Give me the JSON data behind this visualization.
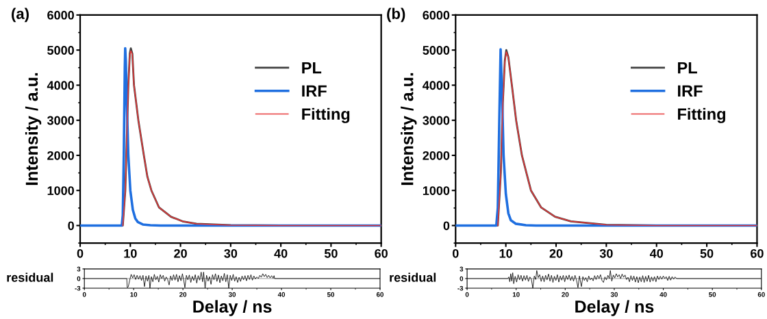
{
  "chart_data": [
    {
      "type": "line",
      "annotations": [
        "(a)"
      ],
      "ylabel": "Intensity / a.u.",
      "xlim": [
        0,
        60
      ],
      "ylim": [
        -500,
        6000
      ],
      "xticks": [
        0,
        10,
        20,
        30,
        40,
        50,
        60
      ],
      "yticks": [
        0,
        1000,
        2000,
        3000,
        4000,
        5000,
        6000
      ],
      "legend": "top right",
      "series": [
        {
          "name": "PL",
          "color": "#404040",
          "x": [
            0,
            8.5,
            9.0,
            9.3,
            9.6,
            9.9,
            10.1,
            10.4,
            10.73,
            11.6,
            12.7,
            13.4,
            14.2,
            15.7,
            18.1,
            20.4,
            23.2,
            30,
            40,
            60
          ],
          "values": [
            0,
            0,
            1000,
            2500,
            4000,
            4900,
            5050,
            4900,
            4000,
            3000,
            2000,
            1390,
            1000,
            520,
            250,
            120,
            50,
            10,
            0,
            0
          ]
        },
        {
          "name": "IRF",
          "color": "#1f6fe0",
          "x": [
            0,
            8.3,
            8.5,
            8.7,
            8.9,
            8.98,
            9.1,
            9.3,
            9.6,
            10.0,
            10.5,
            11.0,
            11.5,
            12.5,
            14,
            16,
            60
          ],
          "values": [
            0,
            0,
            300,
            2000,
            4500,
            5050,
            4700,
            3500,
            2000,
            1000,
            450,
            200,
            100,
            30,
            10,
            0,
            0
          ]
        },
        {
          "name": "Fitting",
          "color": "#e8393a",
          "x": [
            8.5,
            9.0,
            9.3,
            9.6,
            9.9,
            10.1,
            10.4,
            10.73,
            11.6,
            12.7,
            13.4,
            14.2,
            15.7,
            18.1,
            20.4,
            23.2,
            30,
            40,
            60
          ],
          "values": [
            0,
            1000,
            2500,
            4000,
            4850,
            4980,
            4880,
            4000,
            3000,
            2000,
            1390,
            1000,
            520,
            250,
            120,
            50,
            10,
            0,
            0
          ]
        }
      ]
    },
    {
      "type": "line",
      "ylabel": "residual",
      "xlabel": "Delay / ns",
      "xlim": [
        0,
        60
      ],
      "ylim": [
        -3,
        3
      ],
      "xticks": [
        0,
        10,
        20,
        30,
        40,
        50,
        60
      ],
      "yticks": [
        -3,
        0,
        3
      ],
      "ref_lines": [
        {
          "axis": "y",
          "value": 0,
          "color": "#b0b0b0"
        }
      ],
      "series": [
        {
          "color": "#000000",
          "x": [
            0,
            8.6,
            8.7,
            8.9,
            9.2,
            9.5,
            9.8,
            10.1,
            10.4,
            10.7,
            11.0,
            11.3,
            11.6,
            11.9,
            12.2,
            12.5,
            12.8,
            13.1,
            13.3,
            13.6,
            13.9,
            14.2,
            14.5,
            14.8,
            15.1,
            15.4,
            15.7,
            16.0,
            16.3,
            16.6,
            16.9,
            17.2,
            17.5,
            17.8,
            18.1,
            18.4,
            18.7,
            19.0,
            19.3,
            19.6,
            19.9,
            20.2,
            20.4,
            20.7,
            21.0,
            21.3,
            21.6,
            21.9,
            22.2,
            22.5,
            22.8,
            23.1,
            23.4,
            23.7,
            24.0,
            24.2,
            24.5,
            24.8,
            25.1,
            25.4,
            25.7,
            26.0,
            26.3,
            26.6,
            26.9,
            27.2,
            27.5,
            27.8,
            28.1,
            28.4,
            28.7,
            29.0,
            29.3,
            29.6,
            29.9,
            30.2,
            30.5,
            30.8,
            31.1,
            31.4,
            31.7,
            32.0,
            32.3,
            32.6,
            32.9,
            33.2,
            33.5,
            33.8,
            34.1,
            34.4,
            34.7,
            35.0,
            35.3,
            35.6,
            35.9,
            36.2,
            36.5,
            36.8,
            37.1,
            37.4,
            37.7,
            38.0,
            38.3,
            38.5,
            38.6,
            60
          ],
          "values": [
            0,
            0,
            -2.8,
            -2.6,
            -0.5,
            1.3,
            0.2,
            1.2,
            -0.3,
            1.0,
            -0.2,
            0.9,
            -0.6,
            1.0,
            -2.5,
            0.8,
            -0.8,
            1.0,
            -3.0,
            0.6,
            -1.0,
            1.3,
            -0.4,
            0.7,
            -1.1,
            1.2,
            0.0,
            1.0,
            -0.8,
            0.5,
            -0.3,
            -2.0,
            0.8,
            -0.6,
            1.2,
            -0.5,
            1.3,
            -1.0,
            0.9,
            -0.7,
            1.5,
            -0.9,
            -2.8,
            1.0,
            -0.4,
            1.1,
            -1.2,
            0.7,
            -0.6,
            1.2,
            -1.4,
            0.9,
            -0.5,
            2.0,
            -1.0,
            2.0,
            -3.0,
            1.0,
            -0.8,
            0.6,
            -1.8,
            1.2,
            -0.4,
            1.5,
            -0.9,
            1.1,
            -1.3,
            0.8,
            -0.7,
            1.6,
            -1.0,
            1.2,
            -3.0,
            1.0,
            -0.6,
            1.3,
            -0.8,
            0.6,
            -1.2,
            0.4,
            -0.9,
            0.8,
            -0.4,
            0.9,
            -0.7,
            1.0,
            -0.3,
            1.2,
            -0.5,
            0.8,
            -0.1,
            0.5,
            0.0,
            1.0,
            0.4,
            1.5,
            0.6,
            1.3,
            0.3,
            1.0,
            0.2,
            0.9,
            0.1,
            0.9,
            0,
            0
          ]
        }
      ]
    },
    {
      "type": "line",
      "annotations": [
        "(b)"
      ],
      "ylabel": "Intensity / a.u.",
      "xlim": [
        0,
        60
      ],
      "ylim": [
        -500,
        6000
      ],
      "xticks": [
        0,
        10,
        20,
        30,
        40,
        50,
        60
      ],
      "yticks": [
        0,
        1000,
        2000,
        3000,
        4000,
        5000,
        6000
      ],
      "legend": "top right",
      "series": [
        {
          "name": "PL",
          "color": "#404040",
          "x": [
            0,
            8.4,
            9.0,
            9.4,
            9.8,
            10.09,
            10.5,
            11.2,
            12.05,
            13.2,
            15.0,
            17.0,
            19.8,
            22.96,
            30,
            40,
            60
          ],
          "values": [
            0,
            0,
            1500,
            3500,
            4700,
            5000,
            4800,
            4000,
            3000,
            2000,
            1000,
            520,
            250,
            120,
            20,
            0,
            0
          ]
        },
        {
          "name": "IRF",
          "color": "#1f6fe0",
          "x": [
            0,
            8.1,
            8.4,
            8.7,
            8.96,
            9.2,
            9.55,
            10.0,
            10.5,
            11.0,
            12.0,
            14,
            16,
            60
          ],
          "values": [
            0,
            0,
            500,
            3000,
            5020,
            4000,
            2000,
            900,
            350,
            150,
            50,
            10,
            0,
            0
          ]
        },
        {
          "name": "Fitting",
          "color": "#e8393a",
          "x": [
            8.4,
            9.0,
            9.4,
            9.8,
            10.09,
            10.5,
            11.2,
            12.05,
            13.2,
            15.0,
            17.0,
            19.8,
            22.96,
            30,
            40,
            60
          ],
          "values": [
            0,
            1500,
            3500,
            4650,
            4950,
            4800,
            4000,
            3000,
            2000,
            1000,
            520,
            250,
            120,
            20,
            0,
            0
          ]
        }
      ]
    },
    {
      "type": "line",
      "ylabel": "residual",
      "xlabel": "Delay / ns",
      "xlim": [
        0,
        60
      ],
      "ylim": [
        -3,
        3
      ],
      "xticks": [
        0,
        10,
        20,
        30,
        40,
        50,
        60
      ],
      "yticks": [
        -3,
        0,
        3
      ],
      "ref_lines": [
        {
          "axis": "y",
          "value": 0,
          "color": "#b0b0b0"
        }
      ],
      "series": [
        {
          "color": "#000000",
          "x": [
            0,
            8.3,
            8.5,
            8.7,
            8.9,
            9.1,
            9.3,
            9.5,
            9.8,
            10.1,
            10.4,
            10.7,
            11.0,
            11.3,
            11.6,
            11.9,
            12.2,
            12.5,
            12.8,
            13.1,
            13.4,
            13.7,
            14.0,
            14.2,
            14.5,
            14.8,
            15.1,
            15.4,
            15.7,
            16.0,
            16.3,
            16.6,
            16.9,
            17.2,
            17.5,
            17.8,
            18.1,
            18.4,
            18.7,
            19.0,
            19.3,
            19.6,
            19.9,
            20.2,
            20.5,
            20.8,
            21.1,
            21.4,
            21.7,
            22.0,
            22.3,
            22.6,
            22.9,
            23.3,
            23.6,
            23.9,
            24.2,
            24.5,
            24.8,
            25.1,
            25.4,
            25.7,
            26.0,
            26.3,
            26.6,
            26.9,
            27.2,
            27.5,
            27.8,
            28.1,
            28.4,
            28.7,
            29.0,
            29.2,
            29.5,
            29.8,
            30.1,
            30.4,
            30.7,
            31.0,
            31.3,
            31.6,
            31.9,
            32.2,
            32.5,
            32.8,
            33.1,
            33.4,
            33.7,
            34.0,
            34.3,
            34.6,
            34.9,
            35.2,
            35.5,
            35.8,
            36.1,
            36.4,
            36.7,
            37.0,
            37.3,
            37.6,
            37.9,
            38.2,
            38.5,
            38.8,
            39.1,
            39.4,
            39.7,
            40.0,
            40.3,
            40.6,
            40.9,
            41.2,
            41.5,
            41.8,
            42.1,
            42.4,
            42.7,
            60
          ],
          "values": [
            0,
            0,
            0.5,
            -1.0,
            1.5,
            -0.8,
            1.8,
            -1.6,
            0.7,
            -1.1,
            1.2,
            -0.4,
            1.0,
            -0.8,
            0.9,
            -0.5,
            1.0,
            -0.9,
            0.5,
            -0.2,
            -3.0,
            0.8,
            -0.3,
            2.5,
            0.3,
            1.2,
            -0.9,
            0.8,
            -1.0,
            1.0,
            -0.4,
            1.4,
            -0.8,
            1.0,
            -1.2,
            0.7,
            -0.6,
            1.2,
            -1.1,
            0.8,
            -0.5,
            1.0,
            -1.0,
            0.9,
            -0.3,
            1.1,
            -0.6,
            0.7,
            -0.8,
            1.0,
            -0.5,
            -2.8,
            0.8,
            -2.5,
            0.6,
            -0.6,
            0.3,
            -1.0,
            0.8,
            -0.4,
            0.2,
            -0.7,
            0.9,
            -0.3,
            1.0,
            0.0,
            1.2,
            -0.6,
            -1.2,
            0.5,
            -0.4,
            1.0,
            0.0,
            2.5,
            -0.8,
            1.1,
            0.2,
            1.5,
            0.5,
            1.2,
            0.0,
            1.4,
            0.4,
            1.1,
            -0.3,
            0.4,
            -1.0,
            0.9,
            -0.6,
            0.8,
            -1.1,
            0.6,
            -1.3,
            0.5,
            -1.0,
            0.9,
            -1.2,
            0.7,
            -0.9,
            1.0,
            -1.1,
            0.5,
            -0.8,
            0.6,
            -1.0,
            0.8,
            -0.3,
            0.7,
            -0.2,
            0.8,
            0.0,
            0.6,
            -0.6,
            0.7,
            -0.5,
            0.6,
            -0.2,
            0.5,
            0,
            0
          ]
        }
      ]
    }
  ]
}
